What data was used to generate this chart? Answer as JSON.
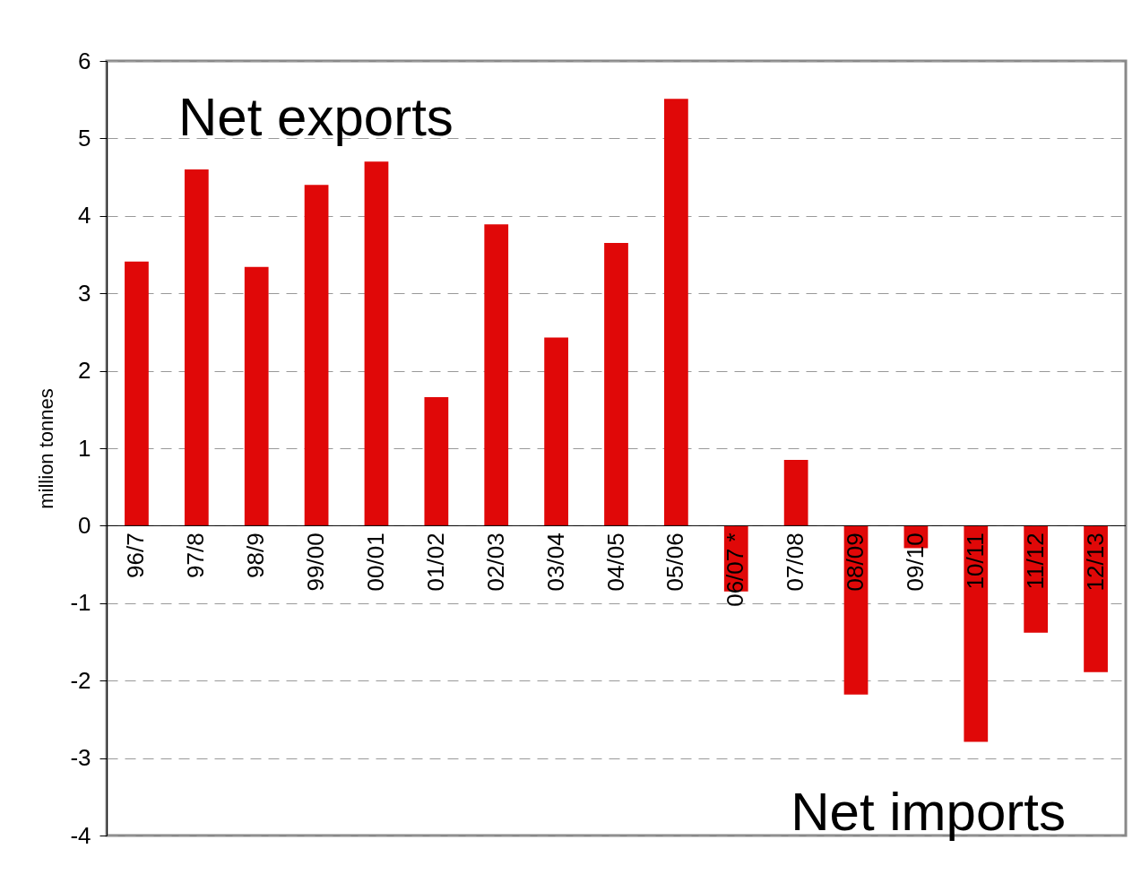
{
  "chart_data": {
    "type": "bar",
    "ylabel": "million tonnes",
    "categories": [
      "96/7",
      "97/8",
      "98/9",
      "99/00",
      "00/01",
      "01/02",
      "02/03",
      "03/04",
      "04/05",
      "05/06",
      "06/07 *",
      "07/08",
      "08/09",
      "09/10",
      "10/11",
      "11/12",
      "12/13"
    ],
    "values": [
      3.41,
      4.6,
      3.34,
      4.4,
      4.7,
      1.66,
      3.89,
      2.43,
      3.65,
      5.51,
      -0.85,
      0.85,
      -2.18,
      -0.29,
      -2.79,
      -1.38,
      -1.89
    ],
    "color": "#e00808",
    "ylim": [
      -4,
      6
    ],
    "yticks": [
      -4,
      -3,
      -2,
      -1,
      0,
      1,
      2,
      3,
      4,
      5,
      6
    ],
    "grid": "y",
    "annotations": [
      "Net exports",
      "Net imports"
    ]
  }
}
